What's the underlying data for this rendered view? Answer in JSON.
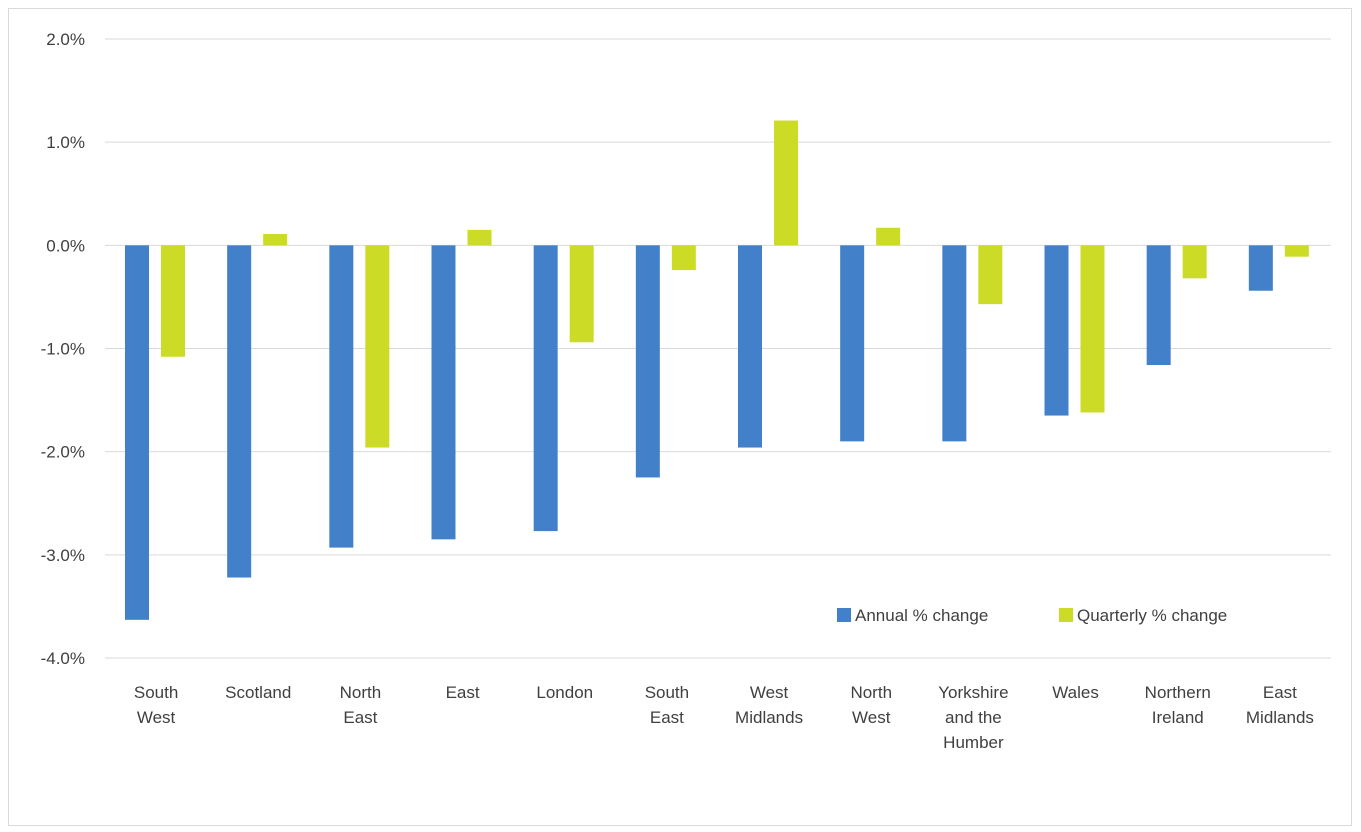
{
  "chart_data": {
    "type": "bar",
    "title": "",
    "xlabel": "",
    "ylabel": "",
    "ylim": [
      -4.0,
      2.0
    ],
    "yticks": [
      "2.0%",
      "1.0%",
      "0.0%",
      "-1.0%",
      "-2.0%",
      "-3.0%",
      "-4.0%"
    ],
    "ytick_values": [
      2.0,
      1.0,
      0.0,
      -1.0,
      -2.0,
      -3.0,
      -4.0
    ],
    "grid": true,
    "legend_position": "bottom-right (inside plot)",
    "categories": [
      [
        "South",
        "West"
      ],
      [
        "Scotland"
      ],
      [
        "North",
        "East"
      ],
      [
        "East"
      ],
      [
        "London"
      ],
      [
        "South",
        "East"
      ],
      [
        "West",
        "Midlands"
      ],
      [
        "North",
        "West"
      ],
      [
        "Yorkshire",
        "and the",
        "Humber"
      ],
      [
        "Wales"
      ],
      [
        "Northern",
        "Ireland"
      ],
      [
        "East",
        "Midlands"
      ]
    ],
    "series": [
      {
        "name": "Annual % change",
        "color": "#4280c9",
        "values": [
          -3.63,
          -3.22,
          -2.93,
          -2.85,
          -2.77,
          -2.25,
          -1.96,
          -1.9,
          -1.9,
          -1.65,
          -1.16,
          -0.44
        ]
      },
      {
        "name": "Quarterly % change",
        "color": "#ccdb26",
        "values": [
          -1.08,
          0.11,
          -1.96,
          0.15,
          -0.94,
          -0.24,
          1.21,
          0.17,
          -0.57,
          -1.62,
          -0.32,
          -0.11
        ]
      }
    ]
  }
}
